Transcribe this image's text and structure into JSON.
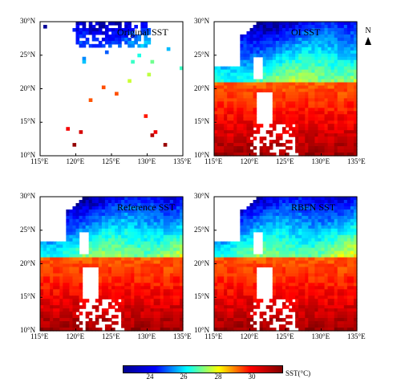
{
  "panels": [
    {
      "title": "Original SST",
      "coverage": "sparse"
    },
    {
      "title": "OI SST",
      "coverage": "full"
    },
    {
      "title": "Reference SST",
      "coverage": "full"
    },
    {
      "title": "RBFN SST",
      "coverage": "full"
    }
  ],
  "axes": {
    "lon_ticks": [
      "115°E",
      "120°E",
      "125°E",
      "130°E",
      "135°E"
    ],
    "lat_ticks": [
      "30°N",
      "25°N",
      "20°N",
      "15°N",
      "10°N"
    ]
  },
  "north_label": "N",
  "colorbar": {
    "ticks": [
      "24",
      "26",
      "28",
      "30"
    ],
    "unit": "SST(°C)",
    "colors": [
      "#00008f",
      "#0000ff",
      "#00ffff",
      "#ffff00",
      "#ff0000",
      "#800000"
    ]
  },
  "map_colors": {
    "land": "#ffffff",
    "ocean_cold": "#1e3cff",
    "ocean_warm": "#c00000"
  }
}
